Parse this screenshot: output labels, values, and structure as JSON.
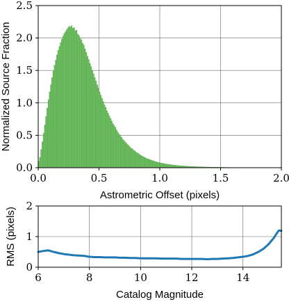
{
  "chart_data": [
    {
      "type": "bar",
      "xlabel": "Astrometric Offset (pixels)",
      "ylabel": "Normalized Source Fraction",
      "xlim": [
        0,
        2.0
      ],
      "ylim": [
        0,
        2.5
      ],
      "xticks": [
        "0.0",
        "0.5",
        "1.0",
        "1.5",
        "2.0"
      ],
      "yticks": [
        "0.0",
        "0.5",
        "1.0",
        "1.5",
        "2.0",
        "2.5"
      ],
      "grid": true,
      "bar_color": "#6fbf62",
      "bar_edge_color": "#4a9a42",
      "bins": {
        "start": 0.0,
        "width": 0.01
      },
      "values": [
        0.1,
        0.16,
        0.28,
        0.4,
        0.53,
        0.66,
        0.79,
        0.92,
        1.05,
        1.17,
        1.28,
        1.39,
        1.49,
        1.58,
        1.66,
        1.74,
        1.81,
        1.87,
        1.93,
        1.98,
        2.03,
        2.07,
        2.1,
        2.13,
        2.16,
        2.18,
        2.17,
        2.19,
        2.15,
        2.16,
        2.11,
        2.12,
        2.06,
        2.04,
        2.0,
        1.97,
        1.92,
        1.89,
        1.83,
        1.78,
        1.72,
        1.67,
        1.61,
        1.56,
        1.5,
        1.45,
        1.39,
        1.34,
        1.28,
        1.23,
        1.17,
        1.12,
        1.07,
        1.02,
        0.97,
        0.93,
        0.88,
        0.84,
        0.8,
        0.76,
        0.72,
        0.68,
        0.65,
        0.62,
        0.58,
        0.55,
        0.52,
        0.5,
        0.47,
        0.44,
        0.42,
        0.4,
        0.38,
        0.36,
        0.34,
        0.32,
        0.3,
        0.29,
        0.27,
        0.26,
        0.24,
        0.23,
        0.22,
        0.2,
        0.19,
        0.18,
        0.17,
        0.16,
        0.15,
        0.14,
        0.135,
        0.128,
        0.12,
        0.113,
        0.107,
        0.1,
        0.095,
        0.09,
        0.085,
        0.08,
        0.075,
        0.071,
        0.067,
        0.063,
        0.06,
        0.057,
        0.054,
        0.051,
        0.048,
        0.046,
        0.043,
        0.041,
        0.039,
        0.037,
        0.035,
        0.033,
        0.031,
        0.03,
        0.028,
        0.027,
        0.026,
        0.024,
        0.023,
        0.022,
        0.021,
        0.02,
        0.019,
        0.018,
        0.017,
        0.016,
        0.016,
        0.015,
        0.014,
        0.013,
        0.013,
        0.012,
        0.012,
        0.011,
        0.011,
        0.01,
        0.01,
        0.009,
        0.009,
        0.009,
        0.008,
        0.008,
        0.007,
        0.007,
        0.007,
        0.006,
        0.006,
        0.006,
        0.006,
        0.005,
        0.005,
        0.005,
        0.005,
        0.004,
        0.004,
        0.004,
        0.004,
        0.004,
        0.003,
        0.003,
        0.003,
        0.003,
        0.003,
        0.003,
        0.003,
        0.002,
        0.002,
        0.002,
        0.002,
        0.002,
        0.002,
        0.002,
        0.002,
        0.002,
        0.002,
        0.001,
        0.001,
        0.001,
        0.001,
        0.001,
        0.001,
        0.001,
        0.001,
        0.001,
        0.001,
        0.001,
        0.001,
        0.001,
        0.001,
        0.001,
        0.001,
        0.001,
        0.001,
        0.001,
        0.001,
        0.001,
        0.001
      ]
    },
    {
      "type": "line",
      "xlabel": "Catalog Magnitude",
      "ylabel": "RMS (pixels)",
      "xlim": [
        6,
        15.5
      ],
      "ylim": [
        0,
        2
      ],
      "xticks": [
        "6",
        "8",
        "10",
        "12",
        "14"
      ],
      "yticks": [
        "0",
        "1",
        "2"
      ],
      "grid": true,
      "line_color": "#1f77b4",
      "x": [
        6.0,
        6.2,
        6.4,
        6.6,
        6.8,
        7.0,
        7.2,
        7.4,
        7.6,
        7.8,
        8.0,
        8.2,
        8.4,
        8.6,
        8.8,
        9.0,
        9.2,
        9.4,
        9.6,
        9.8,
        10.0,
        10.2,
        10.4,
        10.6,
        10.8,
        11.0,
        11.2,
        11.4,
        11.6,
        11.8,
        12.0,
        12.2,
        12.4,
        12.6,
        12.8,
        13.0,
        13.2,
        13.4,
        13.6,
        13.8,
        14.0,
        14.2,
        14.4,
        14.6,
        14.8,
        15.0,
        15.2,
        15.3,
        15.4,
        15.5
      ],
      "y": [
        0.5,
        0.53,
        0.55,
        0.5,
        0.46,
        0.43,
        0.41,
        0.39,
        0.38,
        0.37,
        0.34,
        0.33,
        0.33,
        0.32,
        0.32,
        0.32,
        0.31,
        0.31,
        0.3,
        0.3,
        0.29,
        0.29,
        0.29,
        0.29,
        0.28,
        0.28,
        0.28,
        0.28,
        0.27,
        0.27,
        0.27,
        0.27,
        0.27,
        0.26,
        0.27,
        0.27,
        0.28,
        0.29,
        0.3,
        0.32,
        0.34,
        0.37,
        0.42,
        0.5,
        0.6,
        0.75,
        0.95,
        1.08,
        1.2,
        1.19
      ]
    }
  ]
}
